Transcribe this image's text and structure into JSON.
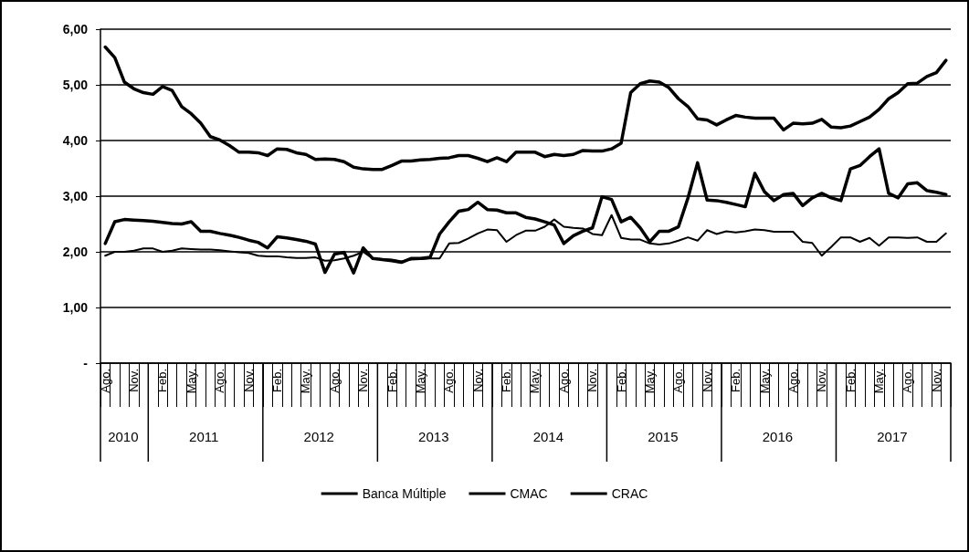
{
  "chart_data": {
    "type": "line",
    "categories": [
      "Ago.",
      null,
      null,
      "Nov.",
      null,
      null,
      "Feb.",
      null,
      null,
      "May.",
      null,
      null,
      "Ago.",
      null,
      null,
      "Nov.",
      null,
      null,
      "Feb.",
      null,
      null,
      "May.",
      null,
      null,
      "Ago.",
      null,
      null,
      "Nov.",
      null,
      null,
      "Feb.",
      null,
      null,
      "May.",
      null,
      null,
      "Ago.",
      null,
      null,
      "Nov.",
      null,
      null,
      "Feb.",
      null,
      null,
      "May.",
      null,
      null,
      "Ago.",
      null,
      null,
      "Nov.",
      null,
      null,
      "Feb.",
      null,
      null,
      "May.",
      null,
      null,
      "Ago.",
      null,
      null,
      "Nov.",
      null,
      null,
      "Feb.",
      null,
      null,
      "May.",
      null,
      null,
      "Ago.",
      null,
      null,
      "Nov.",
      null,
      null,
      "Feb.",
      null,
      null,
      "May.",
      null,
      null,
      "Ago.",
      null,
      null,
      "Nov.",
      null
    ],
    "series": [
      {
        "name": "Banca Múltiple",
        "color": "#000000",
        "values": [
          5.68,
          5.49,
          5.05,
          4.93,
          4.86,
          4.83,
          4.97,
          4.9,
          4.61,
          4.48,
          4.31,
          4.07,
          4.01,
          3.91,
          3.79,
          3.79,
          3.78,
          3.73,
          3.85,
          3.84,
          3.78,
          3.75,
          3.66,
          3.67,
          3.66,
          3.62,
          3.52,
          3.49,
          3.48,
          3.48,
          3.55,
          3.63,
          3.63,
          3.65,
          3.66,
          3.68,
          3.69,
          3.73,
          3.73,
          3.68,
          3.62,
          3.69,
          3.62,
          3.79,
          3.79,
          3.79,
          3.71,
          3.75,
          3.73,
          3.75,
          3.82,
          3.81,
          3.81,
          3.85,
          3.95,
          4.86,
          5.02,
          5.07,
          5.05,
          4.95,
          4.75,
          4.61,
          4.39,
          4.37,
          4.28,
          4.37,
          4.45,
          4.42,
          4.4,
          4.4,
          4.4,
          4.19,
          4.31,
          4.3,
          4.31,
          4.38,
          4.24,
          4.23,
          4.26,
          4.34,
          4.42,
          4.56,
          4.75,
          4.86,
          5.02,
          5.03,
          5.15,
          5.22,
          5.44
        ]
      },
      {
        "name": "CMAC",
        "color": "#000000",
        "values": [
          1.93,
          2.0,
          2.0,
          2.02,
          2.06,
          2.06,
          2.0,
          2.02,
          2.06,
          2.05,
          2.04,
          2.04,
          2.03,
          2.01,
          1.99,
          1.98,
          1.93,
          1.92,
          1.92,
          1.9,
          1.89,
          1.89,
          1.9,
          1.84,
          1.85,
          1.88,
          1.93,
          2.0,
          1.88,
          1.87,
          1.86,
          1.83,
          1.86,
          1.87,
          1.88,
          1.88,
          2.15,
          2.16,
          2.24,
          2.33,
          2.4,
          2.39,
          2.18,
          2.3,
          2.38,
          2.38,
          2.45,
          2.58,
          2.45,
          2.43,
          2.42,
          2.32,
          2.3,
          2.66,
          2.25,
          2.22,
          2.22,
          2.15,
          2.13,
          2.15,
          2.2,
          2.26,
          2.2,
          2.39,
          2.32,
          2.37,
          2.35,
          2.37,
          2.4,
          2.39,
          2.36,
          2.36,
          2.36,
          2.18,
          2.16,
          1.93,
          2.09,
          2.26,
          2.26,
          2.18,
          2.25,
          2.11,
          2.26,
          2.26,
          2.25,
          2.26,
          2.18,
          2.18,
          2.33
        ]
      },
      {
        "name": "CRAC",
        "color": "#000000",
        "values": [
          2.15,
          2.54,
          2.58,
          2.57,
          2.56,
          2.55,
          2.53,
          2.51,
          2.5,
          2.54,
          2.37,
          2.37,
          2.33,
          2.3,
          2.26,
          2.21,
          2.17,
          2.07,
          2.27,
          2.25,
          2.22,
          2.19,
          2.14,
          1.63,
          1.96,
          1.99,
          1.62,
          2.07,
          1.88,
          1.86,
          1.84,
          1.81,
          1.88,
          1.88,
          1.9,
          2.32,
          2.54,
          2.73,
          2.76,
          2.89,
          2.76,
          2.75,
          2.7,
          2.7,
          2.62,
          2.59,
          2.54,
          2.48,
          2.15,
          2.29,
          2.37,
          2.43,
          2.99,
          2.94,
          2.54,
          2.62,
          2.43,
          2.18,
          2.37,
          2.37,
          2.45,
          2.97,
          3.6,
          2.93,
          2.92,
          2.89,
          2.85,
          2.81,
          3.41,
          3.08,
          2.92,
          3.03,
          3.05,
          2.83,
          2.97,
          3.05,
          2.97,
          2.92,
          3.49,
          3.55,
          3.71,
          3.85,
          3.05,
          2.97,
          3.22,
          3.24,
          3.1,
          3.07,
          3.03
        ]
      }
    ],
    "ylim": [
      0,
      6
    ],
    "yticks": [
      {
        "value": 0,
        "label": "-"
      },
      {
        "value": 1,
        "label": "1,00"
      },
      {
        "value": 2,
        "label": "2,00"
      },
      {
        "value": 3,
        "label": "3,00"
      },
      {
        "value": 4,
        "label": "4,00"
      },
      {
        "value": 5,
        "label": "5,00"
      },
      {
        "value": 6,
        "label": "6,00"
      }
    ],
    "annotations": [
      "2010",
      "2011",
      "2012",
      "2013",
      "2014",
      "2015",
      "2016",
      "2017"
    ],
    "grid": "y",
    "legend": "bottom",
    "marker": "none",
    "line_style": "solid"
  }
}
